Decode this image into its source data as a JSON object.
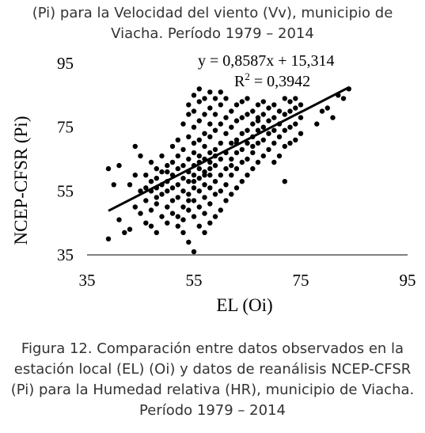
{
  "caption_top": [
    "(Pi) para la Velocidad del viento (Vv), municipio de",
    "Viacha. Período 1979 – 2014"
  ],
  "caption_bottom": [
    "Figura 12. Comparación entre datos observados en la",
    "estación local (EL) (Oi) y datos de reanálisis NCEP-CFSR",
    "(Pi) para la Humedad relativa (HR), municipio de Viacha.",
    "Período 1979 – 2014"
  ],
  "chart_data": {
    "type": "scatter",
    "xlabel": "EL (Oi)",
    "ylabel": "NCEP-CFSR (Pi)",
    "xlim": [
      35,
      95
    ],
    "ylim": [
      35,
      95
    ],
    "xticks": [
      35,
      55,
      75,
      95
    ],
    "yticks": [
      35,
      55,
      75,
      95
    ],
    "grid": false,
    "equation": "y = 0,8587x + 15,314",
    "r2_label": "R",
    "r2_exp": "2",
    "r2_value": " = 0,3942",
    "trendline": {
      "slope": 0.8587,
      "intercept": 15.314,
      "x_range": [
        39,
        84
      ]
    },
    "marker_color": "#000000",
    "points": [
      [
        39,
        40
      ],
      [
        39,
        62
      ],
      [
        40,
        57
      ],
      [
        41,
        63
      ],
      [
        41,
        46
      ],
      [
        42,
        42
      ],
      [
        43,
        43
      ],
      [
        43,
        57
      ],
      [
        44,
        50
      ],
      [
        44,
        60
      ],
      [
        44,
        69
      ],
      [
        45,
        48
      ],
      [
        45,
        55
      ],
      [
        45,
        66
      ],
      [
        46,
        52
      ],
      [
        46,
        56
      ],
      [
        46,
        60
      ],
      [
        46,
        45
      ],
      [
        47,
        55
      ],
      [
        47,
        58
      ],
      [
        47,
        49
      ],
      [
        47,
        44
      ],
      [
        47,
        64
      ],
      [
        48,
        53
      ],
      [
        48,
        59
      ],
      [
        48,
        62
      ],
      [
        48,
        51
      ],
      [
        48,
        42
      ],
      [
        48,
        56
      ],
      [
        49,
        54
      ],
      [
        49,
        57
      ],
      [
        49,
        61
      ],
      [
        49,
        47
      ],
      [
        49,
        66
      ],
      [
        50,
        50
      ],
      [
        50,
        55
      ],
      [
        50,
        58
      ],
      [
        50,
        63
      ],
      [
        50,
        45
      ],
      [
        50,
        61
      ],
      [
        51,
        48
      ],
      [
        51,
        56
      ],
      [
        51,
        60
      ],
      [
        51,
        64
      ],
      [
        51,
        52
      ],
      [
        51,
        69
      ],
      [
        52,
        47
      ],
      [
        52,
        53
      ],
      [
        52,
        57
      ],
      [
        52,
        62
      ],
      [
        52,
        66
      ],
      [
        52,
        44
      ],
      [
        52,
        71
      ],
      [
        53,
        50
      ],
      [
        53,
        55
      ],
      [
        53,
        59
      ],
      [
        53,
        63
      ],
      [
        53,
        68
      ],
      [
        53,
        42
      ],
      [
        53,
        76
      ],
      [
        53,
        46
      ],
      [
        54,
        49
      ],
      [
        54,
        54
      ],
      [
        54,
        58
      ],
      [
        54,
        61
      ],
      [
        54,
        65
      ],
      [
        54,
        72
      ],
      [
        54,
        79
      ],
      [
        54,
        39
      ],
      [
        54,
        52
      ],
      [
        54,
        82
      ],
      [
        55,
        36
      ],
      [
        55,
        47
      ],
      [
        55,
        52
      ],
      [
        55,
        56
      ],
      [
        55,
        60
      ],
      [
        55,
        63
      ],
      [
        55,
        67
      ],
      [
        55,
        70
      ],
      [
        55,
        75
      ],
      [
        55,
        80
      ],
      [
        55,
        85
      ],
      [
        55,
        58
      ],
      [
        56,
        44
      ],
      [
        56,
        50
      ],
      [
        56,
        55
      ],
      [
        56,
        59
      ],
      [
        56,
        62
      ],
      [
        56,
        66
      ],
      [
        56,
        71
      ],
      [
        56,
        77
      ],
      [
        56,
        83
      ],
      [
        56,
        87
      ],
      [
        56,
        64
      ],
      [
        57,
        42
      ],
      [
        57,
        48
      ],
      [
        57,
        53
      ],
      [
        57,
        57
      ],
      [
        57,
        61
      ],
      [
        57,
        65
      ],
      [
        57,
        69
      ],
      [
        57,
        73
      ],
      [
        57,
        79
      ],
      [
        57,
        84
      ],
      [
        57,
        60
      ],
      [
        58,
        45
      ],
      [
        58,
        51
      ],
      [
        58,
        56
      ],
      [
        58,
        60
      ],
      [
        58,
        64
      ],
      [
        58,
        67
      ],
      [
        58,
        72
      ],
      [
        58,
        76
      ],
      [
        58,
        81
      ],
      [
        58,
        86
      ],
      [
        58,
        62
      ],
      [
        59,
        47
      ],
      [
        59,
        54
      ],
      [
        59,
        58
      ],
      [
        59,
        63
      ],
      [
        59,
        68
      ],
      [
        59,
        74
      ],
      [
        59,
        79
      ],
      [
        59,
        84
      ],
      [
        59,
        66
      ],
      [
        60,
        49
      ],
      [
        60,
        55
      ],
      [
        60,
        60
      ],
      [
        60,
        65
      ],
      [
        60,
        70
      ],
      [
        60,
        76
      ],
      [
        60,
        82
      ],
      [
        60,
        86
      ],
      [
        61,
        52
      ],
      [
        61,
        57
      ],
      [
        61,
        62
      ],
      [
        61,
        67
      ],
      [
        61,
        73
      ],
      [
        61,
        78
      ],
      [
        61,
        84
      ],
      [
        62,
        54
      ],
      [
        62,
        60
      ],
      [
        62,
        65
      ],
      [
        62,
        70
      ],
      [
        62,
        75
      ],
      [
        62,
        80
      ],
      [
        62,
        63
      ],
      [
        63,
        56
      ],
      [
        63,
        62
      ],
      [
        63,
        67
      ],
      [
        63,
        71
      ],
      [
        63,
        77
      ],
      [
        63,
        82
      ],
      [
        63,
        70
      ],
      [
        64,
        58
      ],
      [
        64,
        64
      ],
      [
        64,
        68
      ],
      [
        64,
        73
      ],
      [
        64,
        78
      ],
      [
        64,
        83
      ],
      [
        65,
        60
      ],
      [
        65,
        65
      ],
      [
        65,
        70
      ],
      [
        65,
        74
      ],
      [
        65,
        79
      ],
      [
        65,
        84
      ],
      [
        66,
        62
      ],
      [
        66,
        67
      ],
      [
        66,
        72
      ],
      [
        66,
        76
      ],
      [
        66,
        80
      ],
      [
        66,
        69
      ],
      [
        67,
        64
      ],
      [
        67,
        70
      ],
      [
        67,
        74
      ],
      [
        67,
        78
      ],
      [
        67,
        82
      ],
      [
        67,
        77
      ],
      [
        68,
        66
      ],
      [
        68,
        71
      ],
      [
        68,
        75
      ],
      [
        68,
        79
      ],
      [
        68,
        83
      ],
      [
        69,
        68
      ],
      [
        69,
        73
      ],
      [
        69,
        77
      ],
      [
        69,
        81
      ],
      [
        70,
        64
      ],
      [
        70,
        70
      ],
      [
        70,
        74
      ],
      [
        70,
        78
      ],
      [
        70,
        82
      ],
      [
        71,
        66
      ],
      [
        71,
        72
      ],
      [
        71,
        76
      ],
      [
        71,
        80
      ],
      [
        72,
        58
      ],
      [
        72,
        69
      ],
      [
        72,
        74
      ],
      [
        72,
        79
      ],
      [
        72,
        84
      ],
      [
        73,
        70
      ],
      [
        73,
        75
      ],
      [
        73,
        80
      ],
      [
        73,
        83
      ],
      [
        74,
        71
      ],
      [
        74,
        76
      ],
      [
        74,
        81
      ],
      [
        74,
        84
      ],
      [
        75,
        73
      ],
      [
        75,
        78
      ],
      [
        75,
        82
      ],
      [
        78,
        76
      ],
      [
        79,
        80
      ],
      [
        80,
        81
      ],
      [
        81,
        78
      ],
      [
        82,
        85
      ],
      [
        83,
        84
      ],
      [
        84,
        87
      ]
    ]
  }
}
